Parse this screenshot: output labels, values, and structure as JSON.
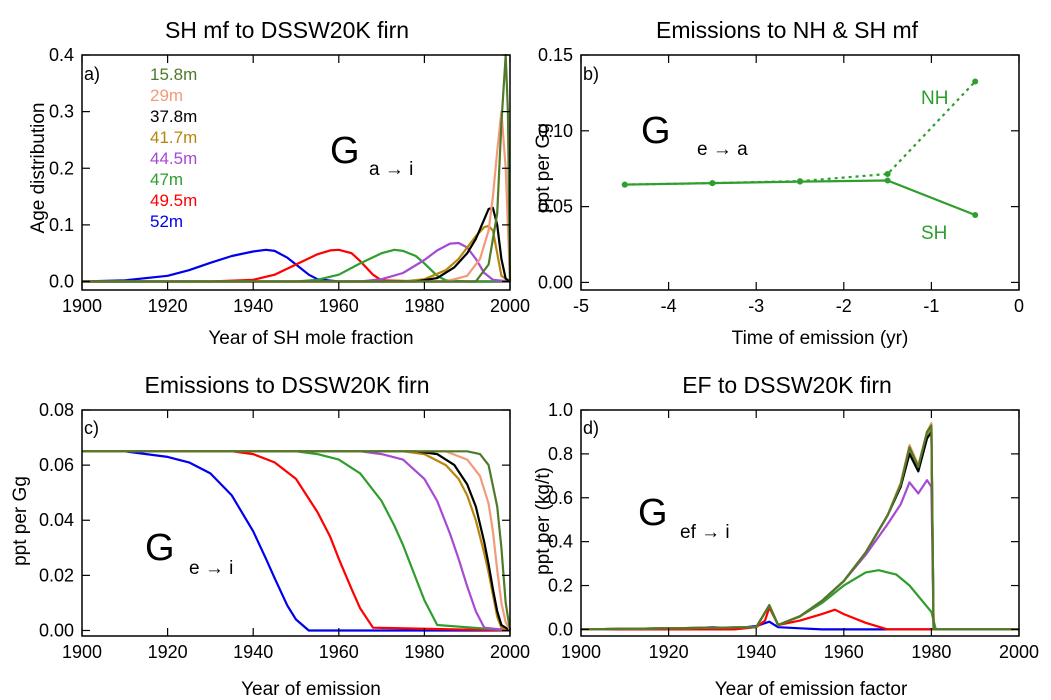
{
  "figure": {
    "panels": [
      {
        "id": "a",
        "title": "SH mf to DSSW20K firn",
        "panel_label": "a)",
        "xlabel": "Year of SH mole fraction",
        "ylabel": "Age distribution",
        "annotation_main": "G",
        "annotation_sub": "a → i"
      },
      {
        "id": "b",
        "title": "Emissions to NH & SH mf",
        "panel_label": "b)",
        "xlabel": "Time of emission (yr)",
        "ylabel": "ppt per Gg",
        "annotation_main": "G",
        "annotation_sub": "e → a",
        "label_nh": "NH",
        "label_sh": "SH"
      },
      {
        "id": "c",
        "title": "Emissions to DSSW20K firn",
        "panel_label": "c)",
        "xlabel": "Year of emission",
        "ylabel": "ppt per Gg",
        "annotation_main": "G",
        "annotation_sub": "e → i"
      },
      {
        "id": "d",
        "title": "EF to DSSW20K firn",
        "panel_label": "d)",
        "xlabel": "Year of emission factor",
        "ylabel": "ppt per (kg/t)",
        "annotation_main": "G",
        "annotation_sub": "ef → i"
      }
    ],
    "depth_legend": [
      {
        "label": "15.8m",
        "color": "#4f7a28"
      },
      {
        "label": "29m",
        "color": "#f49a7a"
      },
      {
        "label": "37.8m",
        "color": "#000000"
      },
      {
        "label": "41.7m",
        "color": "#b8860b"
      },
      {
        "label": "44.5m",
        "color": "#a64ad4"
      },
      {
        "label": "47m",
        "color": "#2e9e2e"
      },
      {
        "label": "49.5m",
        "color": "#ff0000"
      },
      {
        "label": "52m",
        "color": "#0000ee"
      }
    ]
  },
  "chart_data": [
    {
      "type": "line",
      "panel": "a",
      "title": "SH mf to DSSW20K firn",
      "xlabel": "Year of SH mole fraction",
      "ylabel": "Age distribution",
      "xlim": [
        1900,
        2000
      ],
      "ylim": [
        -0.015,
        0.4
      ],
      "xticks": [
        1900,
        1920,
        1940,
        1960,
        1980,
        2000
      ],
      "yticks": [
        0.0,
        0.1,
        0.2,
        0.3,
        0.4
      ],
      "series": [
        {
          "name": "52m",
          "color": "#0000ee",
          "x": [
            1900,
            1910,
            1920,
            1925,
            1930,
            1935,
            1940,
            1943,
            1945,
            1948,
            1950,
            1953,
            1955,
            1960,
            1980,
            2000
          ],
          "y": [
            0,
            0.002,
            0.01,
            0.02,
            0.033,
            0.045,
            0.053,
            0.056,
            0.054,
            0.042,
            0.03,
            0.012,
            0.004,
            0,
            0,
            0
          ]
        },
        {
          "name": "49.5m",
          "color": "#ff0000",
          "x": [
            1900,
            1930,
            1940,
            1945,
            1950,
            1955,
            1958,
            1960,
            1963,
            1965,
            1968,
            1970,
            1980,
            2000
          ],
          "y": [
            0,
            0,
            0.003,
            0.012,
            0.03,
            0.048,
            0.055,
            0.056,
            0.05,
            0.036,
            0.012,
            0.002,
            0,
            0
          ]
        },
        {
          "name": "47m",
          "color": "#2e9e2e",
          "x": [
            1900,
            1950,
            1955,
            1960,
            1965,
            1970,
            1973,
            1975,
            1978,
            1980,
            1983,
            1985,
            1990,
            2000
          ],
          "y": [
            0,
            0,
            0.003,
            0.012,
            0.032,
            0.05,
            0.056,
            0.054,
            0.045,
            0.032,
            0.01,
            0.002,
            0,
            0
          ]
        },
        {
          "name": "44.5m",
          "color": "#a64ad4",
          "x": [
            1900,
            1965,
            1970,
            1975,
            1980,
            1983,
            1986,
            1988,
            1990,
            1992,
            1994,
            1996,
            2000
          ],
          "y": [
            0,
            0,
            0.004,
            0.015,
            0.038,
            0.055,
            0.067,
            0.068,
            0.06,
            0.04,
            0.015,
            0.003,
            0
          ]
        },
        {
          "name": "41.7m",
          "color": "#b8860b",
          "x": [
            1900,
            1975,
            1980,
            1985,
            1988,
            1990,
            1992,
            1994,
            1995,
            1996,
            1997,
            1998,
            2000
          ],
          "y": [
            0,
            0,
            0.004,
            0.02,
            0.04,
            0.06,
            0.08,
            0.096,
            0.098,
            0.09,
            0.05,
            0.01,
            0
          ]
        },
        {
          "name": "37.8m",
          "color": "#000000",
          "x": [
            1900,
            1978,
            1983,
            1987,
            1990,
            1992,
            1994,
            1995,
            1996,
            1997,
            1998,
            1999,
            2000
          ],
          "y": [
            0,
            0,
            0.006,
            0.025,
            0.05,
            0.075,
            0.11,
            0.128,
            0.13,
            0.1,
            0.04,
            0.005,
            0
          ]
        },
        {
          "name": "29m",
          "color": "#f49a7a",
          "x": [
            1900,
            1985,
            1990,
            1993,
            1995,
            1996,
            1997,
            1998,
            1999,
            2000
          ],
          "y": [
            0,
            0,
            0.01,
            0.04,
            0.09,
            0.15,
            0.23,
            0.3,
            0.2,
            0
          ]
        },
        {
          "name": "15.8m",
          "color": "#4f7a28",
          "x": [
            1900,
            1992,
            1995,
            1997,
            1998,
            1999,
            1999.5,
            2000
          ],
          "y": [
            0,
            0,
            0.03,
            0.12,
            0.28,
            0.4,
            0.3,
            0
          ]
        }
      ]
    },
    {
      "type": "line",
      "panel": "b",
      "title": "Emissions to NH & SH mf",
      "xlabel": "Time of emission (yr)",
      "ylabel": "ppt per Gg",
      "xlim": [
        -5,
        0
      ],
      "ylim": [
        -0.005,
        0.15
      ],
      "xticks": [
        -5,
        -4,
        -3,
        -2,
        -1,
        0
      ],
      "yticks": [
        0.0,
        0.05,
        0.1,
        0.15
      ],
      "series": [
        {
          "name": "NH",
          "color": "#2e9e2e",
          "style": "dotted",
          "x": [
            -4.5,
            -3.5,
            -2.5,
            -1.5,
            -0.5
          ],
          "y": [
            0.0645,
            0.0655,
            0.0668,
            0.0715,
            0.1325
          ]
        },
        {
          "name": "SH",
          "color": "#2e9e2e",
          "style": "solid",
          "x": [
            -4.5,
            -3.5,
            -2.5,
            -1.5,
            -0.5
          ],
          "y": [
            0.0645,
            0.0655,
            0.0665,
            0.0672,
            0.0445
          ]
        }
      ]
    },
    {
      "type": "line",
      "panel": "c",
      "title": "Emissions to DSSW20K firn",
      "xlabel": "Year of emission",
      "ylabel": "ppt per Gg",
      "xlim": [
        1900,
        2000
      ],
      "ylim": [
        -0.002,
        0.08
      ],
      "xticks": [
        1900,
        1920,
        1940,
        1960,
        1980,
        2000
      ],
      "yticks": [
        0.0,
        0.02,
        0.04,
        0.06,
        0.08
      ],
      "series": [
        {
          "name": "52m",
          "color": "#0000ee",
          "x": [
            1900,
            1910,
            1920,
            1925,
            1930,
            1935,
            1940,
            1943,
            1945,
            1948,
            1950,
            1953,
            2000
          ],
          "y": [
            0.065,
            0.065,
            0.063,
            0.061,
            0.057,
            0.049,
            0.036,
            0.026,
            0.019,
            0.009,
            0.004,
            0.0,
            0.0
          ]
        },
        {
          "name": "49.5m",
          "color": "#ff0000",
          "x": [
            1900,
            1935,
            1940,
            1945,
            1950,
            1955,
            1958,
            1960,
            1963,
            1965,
            1968,
            2000
          ],
          "y": [
            0.065,
            0.065,
            0.064,
            0.061,
            0.055,
            0.043,
            0.034,
            0.026,
            0.015,
            0.008,
            0.001,
            0.0
          ]
        },
        {
          "name": "47m",
          "color": "#2e9e2e",
          "x": [
            1900,
            1950,
            1955,
            1960,
            1965,
            1970,
            1973,
            1975,
            1978,
            1980,
            1983,
            2000
          ],
          "y": [
            0.065,
            0.065,
            0.064,
            0.062,
            0.057,
            0.047,
            0.038,
            0.031,
            0.019,
            0.011,
            0.002,
            0.0
          ]
        },
        {
          "name": "44.5m",
          "color": "#a64ad4",
          "x": [
            1900,
            1965,
            1970,
            1975,
            1980,
            1983,
            1986,
            1988,
            1990,
            1992,
            1994,
            2000
          ],
          "y": [
            0.065,
            0.065,
            0.064,
            0.062,
            0.055,
            0.047,
            0.035,
            0.026,
            0.016,
            0.007,
            0.001,
            0.0
          ]
        },
        {
          "name": "41.7m",
          "color": "#b8860b",
          "x": [
            1900,
            1975,
            1980,
            1985,
            1988,
            1990,
            1992,
            1994,
            1995,
            1996,
            1997,
            1998,
            2000
          ],
          "y": [
            0.065,
            0.065,
            0.064,
            0.06,
            0.055,
            0.049,
            0.04,
            0.028,
            0.021,
            0.013,
            0.005,
            0.001,
            0.0
          ]
        },
        {
          "name": "37.8m",
          "color": "#000000",
          "x": [
            1900,
            1978,
            1983,
            1987,
            1990,
            1992,
            1994,
            1995,
            1996,
            1997,
            1998,
            2000
          ],
          "y": [
            0.065,
            0.065,
            0.064,
            0.06,
            0.053,
            0.045,
            0.032,
            0.024,
            0.015,
            0.007,
            0.002,
            0.0
          ]
        },
        {
          "name": "29m",
          "color": "#f49a7a",
          "x": [
            1900,
            1985,
            1990,
            1993,
            1995,
            1996,
            1997,
            1998,
            1999,
            2000
          ],
          "y": [
            0.065,
            0.065,
            0.062,
            0.056,
            0.046,
            0.036,
            0.022,
            0.01,
            0.003,
            0.0
          ]
        },
        {
          "name": "15.8m",
          "color": "#4f7a28",
          "x": [
            1900,
            1990,
            1993,
            1995,
            1997,
            1998,
            1999,
            2000
          ],
          "y": [
            0.065,
            0.065,
            0.064,
            0.06,
            0.045,
            0.03,
            0.01,
            0.0
          ]
        }
      ]
    },
    {
      "type": "line",
      "panel": "d",
      "title": "EF to DSSW20K firn",
      "xlabel": "Year of emission factor",
      "ylabel": "ppt per (kg/t)",
      "xlim": [
        1900,
        2000
      ],
      "ylim": [
        -0.03,
        1.0
      ],
      "xticks": [
        1900,
        1920,
        1940,
        1960,
        1980,
        2000
      ],
      "yticks": [
        0.0,
        0.2,
        0.4,
        0.6,
        0.8,
        1.0
      ],
      "series": [
        {
          "name": "52m",
          "color": "#0000ee",
          "x": [
            1900,
            1925,
            1930,
            1935,
            1940,
            1943,
            1945,
            1950,
            1955,
            2000
          ],
          "y": [
            0,
            0.005,
            0.01,
            0.005,
            0.015,
            0.035,
            0.01,
            0.005,
            0,
            0
          ]
        },
        {
          "name": "49.5m",
          "color": "#ff0000",
          "x": [
            1900,
            1935,
            1940,
            1942,
            1943,
            1945,
            1950,
            1955,
            1958,
            1960,
            1965,
            1970,
            2000
          ],
          "y": [
            0,
            0,
            0.01,
            0.04,
            0.1,
            0.02,
            0.04,
            0.07,
            0.09,
            0.07,
            0.03,
            0,
            0
          ]
        },
        {
          "name": "47m",
          "color": "#2e9e2e",
          "x": [
            1900,
            1940,
            1943,
            1945,
            1950,
            1955,
            1960,
            1965,
            1968,
            1970,
            1972,
            1975,
            1980,
            1981,
            2000
          ],
          "y": [
            0,
            0.01,
            0.11,
            0.02,
            0.06,
            0.12,
            0.2,
            0.26,
            0.27,
            0.26,
            0.25,
            0.2,
            0.08,
            0,
            0
          ]
        },
        {
          "name": "44.5m",
          "color": "#a64ad4",
          "x": [
            1900,
            1940,
            1943,
            1945,
            1950,
            1955,
            1960,
            1965,
            1970,
            1973,
            1975,
            1977,
            1979,
            1980,
            1980.5,
            2000
          ],
          "y": [
            0,
            0.01,
            0.11,
            0.02,
            0.06,
            0.13,
            0.22,
            0.34,
            0.48,
            0.57,
            0.67,
            0.62,
            0.68,
            0.65,
            0,
            0
          ]
        },
        {
          "name": "41.7m",
          "color": "#b8860b",
          "x": [
            1900,
            1940,
            1943,
            1945,
            1950,
            1955,
            1960,
            1965,
            1970,
            1973,
            1975,
            1977,
            1979,
            1980,
            1980.5,
            2000
          ],
          "y": [
            0,
            0.01,
            0.11,
            0.02,
            0.06,
            0.13,
            0.22,
            0.35,
            0.52,
            0.66,
            0.82,
            0.73,
            0.89,
            0.92,
            0,
            0
          ]
        },
        {
          "name": "37.8m",
          "color": "#000000",
          "x": [
            1900,
            1940,
            1943,
            1945,
            1950,
            1955,
            1960,
            1965,
            1970,
            1973,
            1975,
            1977,
            1979,
            1980,
            1980.5,
            2000
          ],
          "y": [
            0,
            0.01,
            0.11,
            0.02,
            0.06,
            0.13,
            0.22,
            0.35,
            0.52,
            0.65,
            0.8,
            0.72,
            0.87,
            0.9,
            0,
            0
          ]
        },
        {
          "name": "29m",
          "color": "#f49a7a",
          "x": [
            1900,
            1940,
            1943,
            1945,
            1950,
            1955,
            1960,
            1965,
            1970,
            1973,
            1975,
            1977,
            1979,
            1980,
            1980.5,
            2000
          ],
          "y": [
            0,
            0.01,
            0.11,
            0.02,
            0.06,
            0.13,
            0.22,
            0.35,
            0.52,
            0.67,
            0.84,
            0.75,
            0.9,
            0.94,
            0,
            0
          ]
        },
        {
          "name": "15.8m",
          "color": "#4f7a28",
          "x": [
            1900,
            1940,
            1943,
            1945,
            1950,
            1955,
            1960,
            1965,
            1970,
            1973,
            1975,
            1977,
            1979,
            1980,
            1980.5,
            2000
          ],
          "y": [
            0,
            0.01,
            0.11,
            0.02,
            0.06,
            0.13,
            0.22,
            0.35,
            0.52,
            0.66,
            0.83,
            0.74,
            0.9,
            0.93,
            0,
            0
          ]
        }
      ]
    }
  ]
}
